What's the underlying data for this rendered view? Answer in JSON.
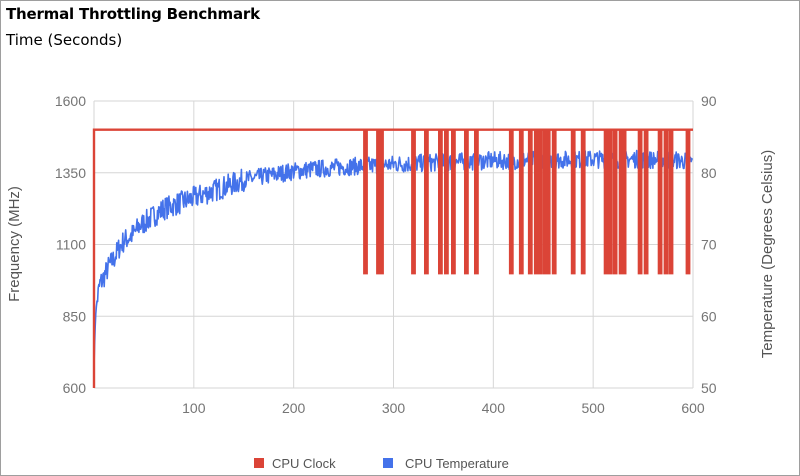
{
  "chart_title": "Thermal Throttling Benchmark",
  "chart_subtitle": "Time (Seconds)",
  "chart_data": {
    "type": "line",
    "title": "Thermal Throttling Benchmark",
    "subtitle": "Time (Seconds)",
    "xlabel": "",
    "ylabel": "Frequency (MHz)",
    "y2label": "Temperature (Degrees Celsius)",
    "xlim": [
      0,
      600
    ],
    "ylim": [
      600,
      1600
    ],
    "y2lim": [
      50,
      90
    ],
    "x_ticks": [
      "100",
      "200",
      "300",
      "400",
      "500",
      "600"
    ],
    "y_ticks": [
      "600",
      "850",
      "1100",
      "1350",
      "1600"
    ],
    "y2_ticks": [
      "50",
      "60",
      "70",
      "80",
      "90"
    ],
    "grid": true,
    "legend_position": "bottom",
    "series": [
      {
        "name": "CPU Clock",
        "axis": "left",
        "color": "#db4437",
        "baseline": 1500,
        "throttled": 1000,
        "start": 600,
        "dips": [
          272,
          285,
          288,
          320,
          333,
          347,
          353,
          360,
          373,
          383,
          418,
          428,
          437,
          443,
          447,
          452,
          455,
          461,
          480,
          490,
          513,
          517,
          522,
          528,
          531,
          547,
          553,
          567,
          573,
          578,
          595
        ]
      },
      {
        "name": "CPU Temperature",
        "axis": "right",
        "color": "#4472ea",
        "points": [
          [
            0,
            53
          ],
          [
            1,
            58
          ],
          [
            2,
            61
          ],
          [
            4,
            63
          ],
          [
            6,
            64.5
          ],
          [
            10,
            65.5
          ],
          [
            15,
            67
          ],
          [
            20,
            68
          ],
          [
            25,
            69.5
          ],
          [
            30,
            70.5
          ],
          [
            35,
            71
          ],
          [
            40,
            71.5
          ],
          [
            45,
            72.5
          ],
          [
            50,
            73
          ],
          [
            55,
            73.5
          ],
          [
            60,
            74
          ],
          [
            70,
            75
          ],
          [
            80,
            75.5
          ],
          [
            90,
            76
          ],
          [
            100,
            76.5
          ],
          [
            110,
            77
          ],
          [
            120,
            77.5
          ],
          [
            130,
            78
          ],
          [
            140,
            78.5
          ],
          [
            150,
            79
          ],
          [
            160,
            79.2
          ],
          [
            170,
            79.5
          ],
          [
            180,
            79.7
          ],
          [
            190,
            80
          ],
          [
            200,
            80.2
          ],
          [
            220,
            80.5
          ],
          [
            240,
            80.7
          ],
          [
            260,
            80.9
          ],
          [
            280,
            81
          ],
          [
            300,
            81.2
          ],
          [
            320,
            81.3
          ],
          [
            340,
            81.4
          ],
          [
            360,
            81.5
          ],
          [
            380,
            81.6
          ],
          [
            400,
            81.7
          ],
          [
            420,
            81.7
          ],
          [
            440,
            81.8
          ],
          [
            460,
            81.8
          ],
          [
            480,
            81.8
          ],
          [
            500,
            81.9
          ],
          [
            520,
            81.8
          ],
          [
            540,
            81.9
          ],
          [
            560,
            81.8
          ],
          [
            580,
            81.8
          ],
          [
            600,
            81.5
          ]
        ]
      }
    ]
  }
}
